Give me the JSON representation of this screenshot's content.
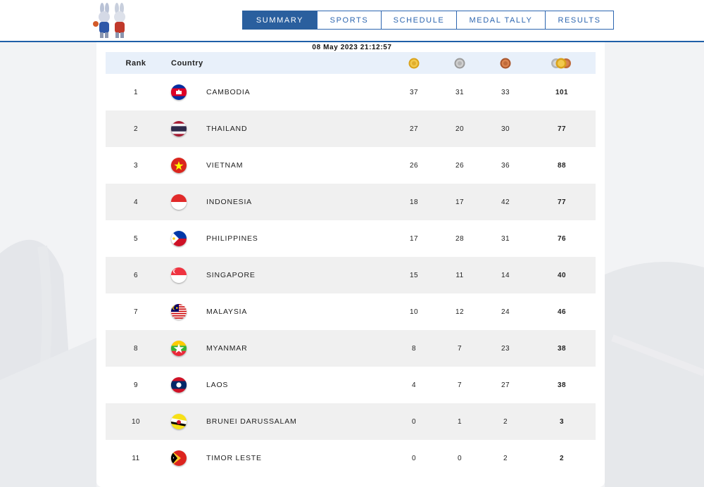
{
  "nav": {
    "tabs": [
      {
        "label": "SUMMARY",
        "active": true
      },
      {
        "label": "SPORTS",
        "active": false
      },
      {
        "label": "SCHEDULE",
        "active": false
      },
      {
        "label": "MEDAL TALLY",
        "active": false
      },
      {
        "label": "RESULTS",
        "active": false
      }
    ]
  },
  "timestamp": "08 May 2023  21:12:57",
  "table": {
    "headers": {
      "rank": "Rank",
      "country": "Country"
    },
    "medal_icons": [
      "gold-medal-icon",
      "silver-medal-icon",
      "bronze-medal-icon",
      "total-medals-icon"
    ],
    "rows": [
      {
        "rank": "1",
        "country": "CAMBODIA",
        "flag": "cambodia-flag-icon",
        "gold": "37",
        "silver": "31",
        "bronze": "33",
        "total": "101"
      },
      {
        "rank": "2",
        "country": "THAILAND",
        "flag": "thailand-flag-icon",
        "gold": "27",
        "silver": "20",
        "bronze": "30",
        "total": "77"
      },
      {
        "rank": "3",
        "country": "VIETNAM",
        "flag": "vietnam-flag-icon",
        "gold": "26",
        "silver": "26",
        "bronze": "36",
        "total": "88"
      },
      {
        "rank": "4",
        "country": "INDONESIA",
        "flag": "indonesia-flag-icon",
        "gold": "18",
        "silver": "17",
        "bronze": "42",
        "total": "77"
      },
      {
        "rank": "5",
        "country": "PHILIPPINES",
        "flag": "philippines-flag-icon",
        "gold": "17",
        "silver": "28",
        "bronze": "31",
        "total": "76"
      },
      {
        "rank": "6",
        "country": "SINGAPORE",
        "flag": "singapore-flag-icon",
        "gold": "15",
        "silver": "11",
        "bronze": "14",
        "total": "40"
      },
      {
        "rank": "7",
        "country": "MALAYSIA",
        "flag": "malaysia-flag-icon",
        "gold": "10",
        "silver": "12",
        "bronze": "24",
        "total": "46"
      },
      {
        "rank": "8",
        "country": "MYANMAR",
        "flag": "myanmar-flag-icon",
        "gold": "8",
        "silver": "7",
        "bronze": "23",
        "total": "38"
      },
      {
        "rank": "9",
        "country": "LAOS",
        "flag": "laos-flag-icon",
        "gold": "4",
        "silver": "7",
        "bronze": "27",
        "total": "38"
      },
      {
        "rank": "10",
        "country": "BRUNEI DARUSSALAM",
        "flag": "brunei-flag-icon",
        "gold": "0",
        "silver": "1",
        "bronze": "2",
        "total": "3"
      },
      {
        "rank": "11",
        "country": "TIMOR LESTE",
        "flag": "timor-leste-flag-icon",
        "gold": "0",
        "silver": "0",
        "bronze": "2",
        "total": "2"
      }
    ]
  }
}
